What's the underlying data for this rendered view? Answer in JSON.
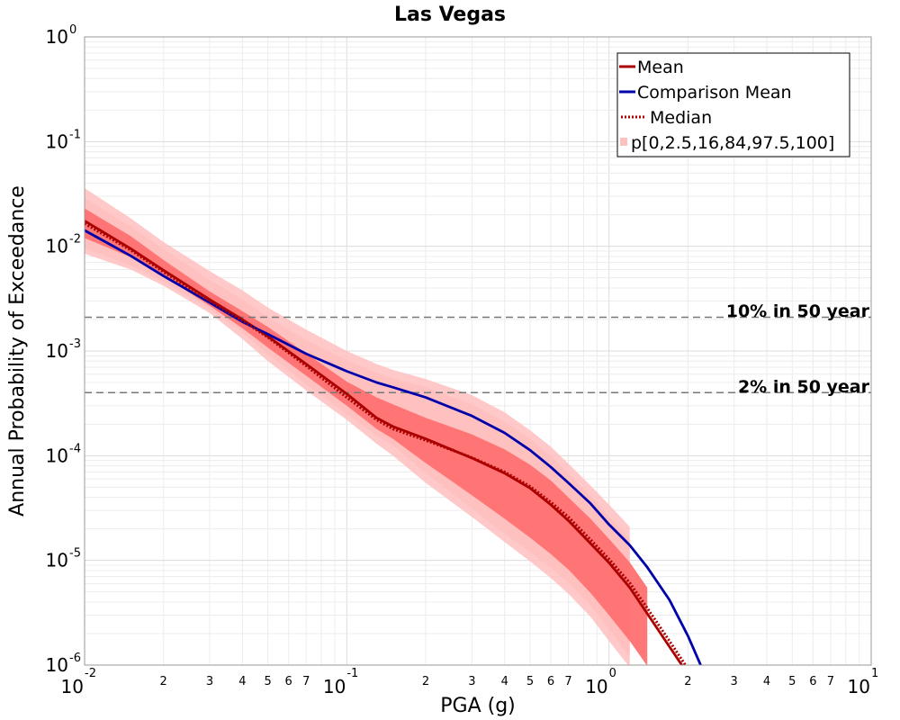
{
  "chart_data": {
    "type": "line",
    "title": "Las Vegas",
    "xlabel": "PGA (g)",
    "ylabel": "Annual Probability of Exceedance",
    "xscale": "log",
    "yscale": "log",
    "xlim": [
      0.01,
      10
    ],
    "ylim": [
      1e-06,
      1
    ],
    "grid": true,
    "legend_position": "top-right",
    "x_major_ticks": [
      {
        "value": 0.01,
        "base": "10",
        "exp": "-2"
      },
      {
        "value": 0.1,
        "base": "10",
        "exp": "-1"
      },
      {
        "value": 1,
        "base": "10",
        "exp": "0"
      },
      {
        "value": 10,
        "base": "10",
        "exp": "1"
      }
    ],
    "y_major_ticks": [
      {
        "value": 1,
        "base": "10",
        "exp": "0"
      },
      {
        "value": 0.1,
        "base": "10",
        "exp": "-1"
      },
      {
        "value": 0.01,
        "base": "10",
        "exp": "-2"
      },
      {
        "value": 0.001,
        "base": "10",
        "exp": "-3"
      },
      {
        "value": 0.0001,
        "base": "10",
        "exp": "-4"
      },
      {
        "value": 1e-05,
        "base": "10",
        "exp": "-5"
      },
      {
        "value": 1e-06,
        "base": "10",
        "exp": "-6"
      }
    ],
    "x_minor_tick_labels": [
      "2",
      "3",
      "4",
      "5",
      "6",
      "7"
    ],
    "x": [
      0.01,
      0.015,
      0.02,
      0.03,
      0.04,
      0.05,
      0.07,
      0.1,
      0.13,
      0.15,
      0.2,
      0.3,
      0.4,
      0.5,
      0.6,
      0.7,
      0.85,
      1.0,
      1.2,
      1.4,
      1.7,
      2.0,
      2.3,
      2.6
    ],
    "series": [
      {
        "name": "Mean",
        "color": "#aa0000",
        "style": "solid",
        "values": [
          0.0175,
          0.0095,
          0.0059,
          0.0031,
          0.002,
          0.00138,
          0.00075,
          0.00039,
          0.00023,
          0.00019,
          0.000145,
          9.5e-05,
          6.8e-05,
          4.9e-05,
          3.4e-05,
          2.4e-05,
          1.45e-05,
          9.5e-06,
          5.5e-06,
          3.1e-06,
          1.5e-06,
          8.2e-07,
          null,
          null
        ]
      },
      {
        "name": "Comparison Mean",
        "color": "#0000aa",
        "style": "solid",
        "values": [
          0.0142,
          0.0081,
          0.0052,
          0.0029,
          0.0019,
          0.00145,
          0.00094,
          0.00064,
          0.0005,
          0.00045,
          0.00036,
          0.00024,
          0.000165,
          0.000113,
          7.8e-05,
          5.5e-05,
          3.5e-05,
          2.2e-05,
          1.4e-05,
          8.6e-06,
          4.2e-06,
          1.9e-06,
          8.5e-07,
          null
        ]
      },
      {
        "name": "Median",
        "color": "#aa0000",
        "style": "dotted",
        "values": [
          0.0165,
          0.0092,
          0.0057,
          0.003,
          0.00195,
          0.00135,
          0.00072,
          0.00036,
          0.00022,
          0.00018,
          0.00014,
          9.6e-05,
          7e-05,
          5.1e-05,
          3.6e-05,
          2.6e-05,
          1.58e-05,
          1.03e-05,
          6.1e-06,
          3.5e-06,
          1.7e-06,
          9.2e-07,
          null,
          null
        ]
      }
    ],
    "bands": {
      "name": "p[0,2.5,16,84,97.5,100]",
      "outer_color": "#ffc0c0",
      "inner_color": "#ff7070",
      "p0": [
        0.0085,
        0.006,
        0.0042,
        0.0023,
        0.0013,
        0.0008,
        0.00042,
        0.00022,
        0.00013,
        0.0001,
        5.5e-05,
        2.6e-05,
        1.5e-05,
        9.8e-06,
        6.8e-06,
        4.8e-06,
        2.9e-06,
        1.7e-06,
        9.5e-07,
        null,
        null,
        null,
        null,
        null
      ],
      "p2_5": [
        0.0095,
        0.0066,
        0.0046,
        0.0025,
        0.0015,
        0.00093,
        0.00048,
        0.00025,
        0.000155,
        0.000125,
        6.8e-05,
        3.1e-05,
        1.8e-05,
        1.2e-05,
        8.5e-06,
        6.1e-06,
        3.7e-06,
        2.2e-06,
        1.2e-06,
        null,
        null,
        null,
        null,
        null
      ],
      "p16": [
        0.012,
        0.0079,
        0.0052,
        0.0027,
        0.00165,
        0.00108,
        0.00058,
        0.0003,
        0.00018,
        0.000145,
        8.5e-05,
        4.2e-05,
        2.5e-05,
        1.65e-05,
        1.15e-05,
        8.2e-06,
        4.9e-06,
        3e-06,
        1.7e-06,
        9.8e-07,
        null,
        null,
        null,
        null
      ],
      "p84": [
        0.023,
        0.0125,
        0.0074,
        0.0037,
        0.0024,
        0.0017,
        0.00095,
        0.00051,
        0.00036,
        0.00031,
        0.00023,
        0.00016,
        0.000115,
        8.2e-05,
        5.8e-05,
        4e-05,
        2.5e-05,
        1.6e-05,
        9.6e-06,
        5.5e-06,
        2.6e-06,
        1.2e-06,
        null,
        null
      ],
      "p97_5": [
        0.029,
        0.0155,
        0.0094,
        0.0048,
        0.0031,
        0.0021,
        0.00128,
        0.00082,
        0.00062,
        0.00055,
        0.00045,
        0.00031,
        0.00021,
        0.000145,
        0.0001,
        6.8e-05,
        4.1e-05,
        2.6e-05,
        1.6e-05,
        9.4e-06,
        4.5e-06,
        2.1e-06,
        9.5e-07,
        null
      ],
      "p100": [
        0.036,
        0.0185,
        0.011,
        0.0058,
        0.0038,
        0.0026,
        0.0016,
        0.001,
        0.00075,
        0.00066,
        0.00054,
        0.00038,
        0.00026,
        0.000175,
        0.000122,
        8.4e-05,
        5.2e-05,
        3.4e-05,
        2.1e-05,
        1.25e-05,
        6e-06,
        2.9e-06,
        1.4e-06,
        9e-07
      ]
    },
    "reference_lines": [
      {
        "label": "10% in 50 year",
        "y": 0.0021
      },
      {
        "label": "2% in 50 year",
        "y": 0.0004
      }
    ]
  }
}
